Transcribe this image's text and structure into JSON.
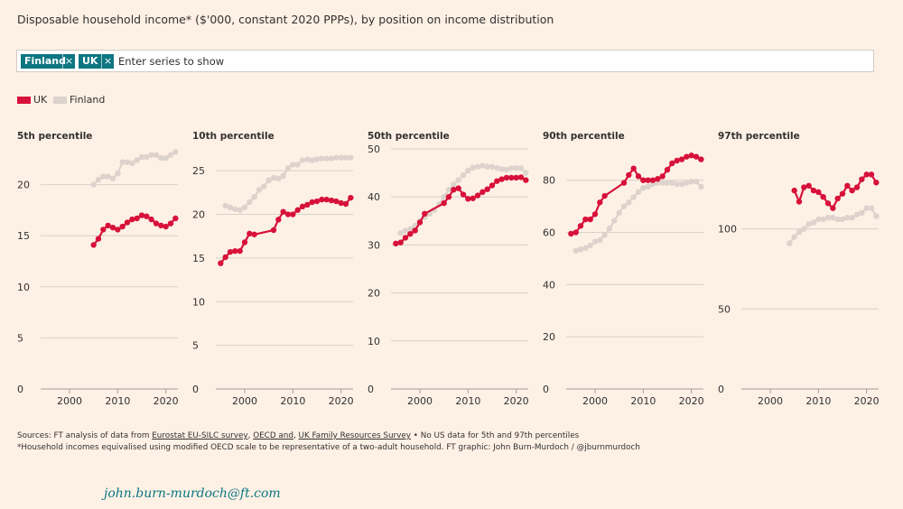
{
  "header": {
    "title": "Disposable household income* ($'000, constant 2020 PPPs), by position on income distribution"
  },
  "search": {
    "chips": [
      {
        "label": "Finland",
        "remove_icon": "×"
      },
      {
        "label": "UK",
        "remove_icon": "×"
      }
    ],
    "placeholder": "Enter series to show"
  },
  "legend": [
    {
      "label": "UK",
      "color": "#d7113a"
    },
    {
      "label": "Finland",
      "color": "#dcd3cc"
    }
  ],
  "colors": {
    "uk": "#d7113a",
    "finland": "#dcd3cc",
    "grid": "#d8d0c8",
    "axis": "#33302e",
    "background": "#fdf1e6"
  },
  "footer": {
    "sources_prefix": "Sources: FT analysis of data from",
    "link1": "Eurostat EU-SILC survey",
    "sep1": ",",
    "link2": "OECD and",
    "sep2": ",",
    "link3": "UK Family Resources Survey",
    "sources_suffix": "• No US data for 5th and 97th percentiles",
    "note": "*Household incomes equivalised using modified OECD scale to be representative of a two-adult household. FT graphic: John Burn-Murdoch / @jburnmurdoch"
  },
  "signature": "john.burn-murdoch@ft.com",
  "chart_data": [
    {
      "type": "line",
      "title": "5th percentile",
      "x_ticks": [
        2000,
        2010,
        2020
      ],
      "y_ticks": [
        0,
        5,
        10,
        15,
        20
      ],
      "xlim": [
        1994,
        2022.5
      ],
      "ylim": [
        0,
        23.5
      ],
      "series": [
        {
          "name": "Finland",
          "x": [
            2005,
            2006,
            2007,
            2008,
            2009,
            2010,
            2011,
            2012,
            2013,
            2014,
            2015,
            2016,
            2017,
            2018,
            2019,
            2020,
            2021,
            2022
          ],
          "values": [
            20.0,
            20.5,
            20.8,
            20.8,
            20.6,
            21.1,
            22.2,
            22.2,
            22.1,
            22.4,
            22.7,
            22.7,
            22.9,
            22.9,
            22.6,
            22.6,
            22.9,
            23.2
          ]
        },
        {
          "name": "UK",
          "x": [
            2005,
            2006,
            2007,
            2008,
            2009,
            2010,
            2011,
            2012,
            2013,
            2014,
            2015,
            2016,
            2017,
            2018,
            2019,
            2020,
            2021,
            2022
          ],
          "values": [
            14.1,
            14.7,
            15.6,
            16.0,
            15.8,
            15.6,
            15.9,
            16.3,
            16.6,
            16.7,
            17.0,
            16.9,
            16.6,
            16.2,
            16.0,
            15.9,
            16.2,
            16.7
          ]
        }
      ]
    },
    {
      "type": "line",
      "title": "10th percentile",
      "x_ticks": [
        2000,
        2010,
        2020
      ],
      "y_ticks": [
        0,
        5,
        10,
        15,
        20,
        25
      ],
      "xlim": [
        1994,
        2022.5
      ],
      "ylim": [
        0,
        27.5
      ],
      "series": [
        {
          "name": "Finland",
          "x": [
            1996,
            1997,
            1998,
            1999,
            2000,
            2001,
            2002,
            2003,
            2004,
            2005,
            2006,
            2007,
            2008,
            2009,
            2010,
            2011,
            2012,
            2013,
            2014,
            2015,
            2016,
            2017,
            2018,
            2019,
            2020,
            2021,
            2022
          ],
          "values": [
            21.0,
            20.8,
            20.6,
            20.5,
            20.8,
            21.4,
            22.0,
            22.8,
            23.2,
            23.9,
            24.2,
            24.1,
            24.4,
            25.3,
            25.7,
            25.7,
            26.2,
            26.3,
            26.2,
            26.3,
            26.4,
            26.4,
            26.4,
            26.5,
            26.5,
            26.5,
            26.5
          ]
        },
        {
          "name": "UK",
          "x": [
            1995,
            1996,
            1997,
            1998,
            1999,
            2000,
            2001,
            2002,
            2006,
            2007,
            2008,
            2009,
            2010,
            2011,
            2012,
            2013,
            2014,
            2015,
            2016,
            2017,
            2018,
            2019,
            2020,
            2021,
            2022
          ],
          "values": [
            14.4,
            15.1,
            15.7,
            15.8,
            15.8,
            16.8,
            17.8,
            17.7,
            18.2,
            19.4,
            20.3,
            20.0,
            20.0,
            20.5,
            20.9,
            21.1,
            21.4,
            21.5,
            21.7,
            21.7,
            21.6,
            21.5,
            21.3,
            21.2,
            21.9
          ]
        }
      ]
    },
    {
      "type": "line",
      "title": "50th percentile",
      "x_ticks": [
        2000,
        2010,
        2020
      ],
      "y_ticks": [
        0,
        10,
        20,
        30,
        40,
        50
      ],
      "xlim": [
        1994,
        2022.5
      ],
      "ylim": [
        0,
        50
      ],
      "series": [
        {
          "name": "Finland",
          "x": [
            1996,
            1997,
            1998,
            1999,
            2000,
            2001,
            2002,
            2003,
            2004,
            2005,
            2006,
            2007,
            2008,
            2009,
            2010,
            2011,
            2012,
            2013,
            2014,
            2015,
            2016,
            2017,
            2018,
            2019,
            2020,
            2021,
            2022
          ],
          "values": [
            32.5,
            33.0,
            33.3,
            34.0,
            35.0,
            35.8,
            36.5,
            37.3,
            38.5,
            40.0,
            41.5,
            42.6,
            43.5,
            44.5,
            45.5,
            46.1,
            46.3,
            46.5,
            46.3,
            46.3,
            46.0,
            45.8,
            45.7,
            46.0,
            46.0,
            46.0,
            45.0
          ]
        },
        {
          "name": "UK",
          "x": [
            1995,
            1996,
            1997,
            1998,
            1999,
            2000,
            2001,
            2005,
            2006,
            2007,
            2008,
            2009,
            2010,
            2011,
            2012,
            2013,
            2014,
            2015,
            2016,
            2017,
            2018,
            2019,
            2020,
            2021,
            2022
          ],
          "values": [
            30.3,
            30.5,
            31.5,
            32.3,
            33.0,
            34.7,
            36.5,
            38.7,
            40.0,
            41.5,
            41.8,
            40.5,
            39.6,
            39.7,
            40.3,
            41.0,
            41.6,
            42.4,
            43.3,
            43.7,
            44.0,
            44.0,
            44.0,
            44.1,
            43.5
          ]
        }
      ]
    },
    {
      "type": "line",
      "title": "90th percentile",
      "x_ticks": [
        2000,
        2010,
        2020
      ],
      "y_ticks": [
        0,
        20,
        40,
        60,
        80
      ],
      "xlim": [
        1994,
        2022.5
      ],
      "ylim": [
        0,
        92
      ],
      "series": [
        {
          "name": "Finland",
          "x": [
            1996,
            1997,
            1998,
            1999,
            2000,
            2001,
            2002,
            2003,
            2004,
            2005,
            2006,
            2007,
            2008,
            2009,
            2010,
            2011,
            2012,
            2013,
            2014,
            2015,
            2016,
            2017,
            2018,
            2019,
            2020,
            2021,
            2022
          ],
          "values": [
            53.0,
            53.5,
            54.0,
            55.0,
            56.5,
            57.0,
            59.0,
            61.5,
            64.5,
            67.5,
            70.0,
            71.5,
            73.5,
            75.5,
            77.0,
            77.5,
            78.5,
            79.0,
            79.0,
            79.0,
            79.0,
            78.5,
            78.5,
            79.0,
            79.5,
            79.5,
            77.5
          ]
        },
        {
          "name": "UK",
          "x": [
            1995,
            1996,
            1997,
            1998,
            1999,
            2000,
            2001,
            2002,
            2006,
            2007,
            2008,
            2009,
            2010,
            2011,
            2012,
            2013,
            2014,
            2015,
            2016,
            2017,
            2018,
            2019,
            2020,
            2021,
            2022
          ],
          "values": [
            59.5,
            60.0,
            62.5,
            65.0,
            65.0,
            67.0,
            71.5,
            74.0,
            79.0,
            82.0,
            84.5,
            81.5,
            80.0,
            80.0,
            80.0,
            80.5,
            81.5,
            84.0,
            86.5,
            87.5,
            88.0,
            89.0,
            89.5,
            89.0,
            88.0
          ]
        }
      ]
    },
    {
      "type": "line",
      "title": "97th percentile",
      "x_ticks": [
        2000,
        2010,
        2020
      ],
      "y_ticks": [
        0,
        50,
        100
      ],
      "xlim": [
        1994,
        2022.5
      ],
      "ylim": [
        0,
        150
      ],
      "series": [
        {
          "name": "Finland",
          "x": [
            2004,
            2005,
            2006,
            2007,
            2008,
            2009,
            2010,
            2011,
            2012,
            2013,
            2014,
            2015,
            2016,
            2017,
            2018,
            2019,
            2020,
            2021,
            2022
          ],
          "values": [
            91,
            95,
            98,
            100,
            103,
            104,
            106,
            106,
            107,
            107,
            106,
            106,
            107,
            107,
            109,
            110,
            113,
            113,
            108
          ]
        },
        {
          "name": "UK",
          "x": [
            2005,
            2006,
            2007,
            2008,
            2009,
            2010,
            2011,
            2012,
            2013,
            2014,
            2015,
            2016,
            2017,
            2018,
            2019,
            2020,
            2021,
            2022
          ],
          "values": [
            124,
            117,
            126,
            127,
            124,
            123,
            120,
            116,
            113,
            119,
            122,
            127,
            124,
            126,
            131,
            134,
            134,
            129
          ]
        }
      ]
    }
  ]
}
